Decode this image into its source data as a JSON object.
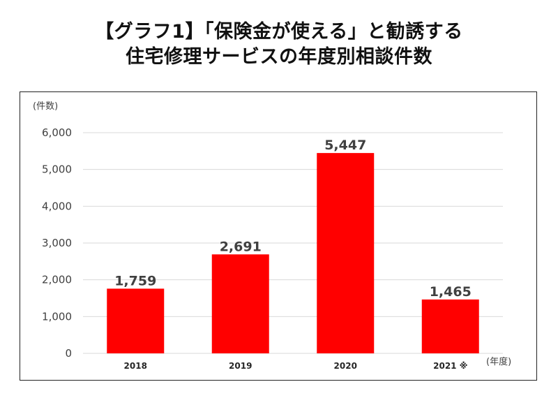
{
  "title": {
    "line1": "【グラフ1】「保険金が使える」と勧誘する",
    "line2": "住宅修理サービスの年度別相談件数"
  },
  "colors": {
    "bar": "#ff0000",
    "grid": "#d9d9d9",
    "frame": "#222222"
  },
  "chart_data": {
    "type": "bar",
    "categories": [
      "2018",
      "2019",
      "2020",
      "2021 ※"
    ],
    "values": [
      1759,
      2691,
      5447,
      1465
    ],
    "data_labels": [
      "1,759",
      "2,691",
      "5,447",
      "1,465"
    ],
    "yticks": [
      0,
      1000,
      2000,
      3000,
      4000,
      5000,
      6000
    ],
    "ytick_labels": [
      "0",
      "1,000",
      "2,000",
      "3,000",
      "4,000",
      "5,000",
      "6,000"
    ],
    "ylim": [
      0,
      6000
    ],
    "ylabel": "(件数)",
    "xlabel": "(年度)",
    "grid": true,
    "legend": false
  }
}
